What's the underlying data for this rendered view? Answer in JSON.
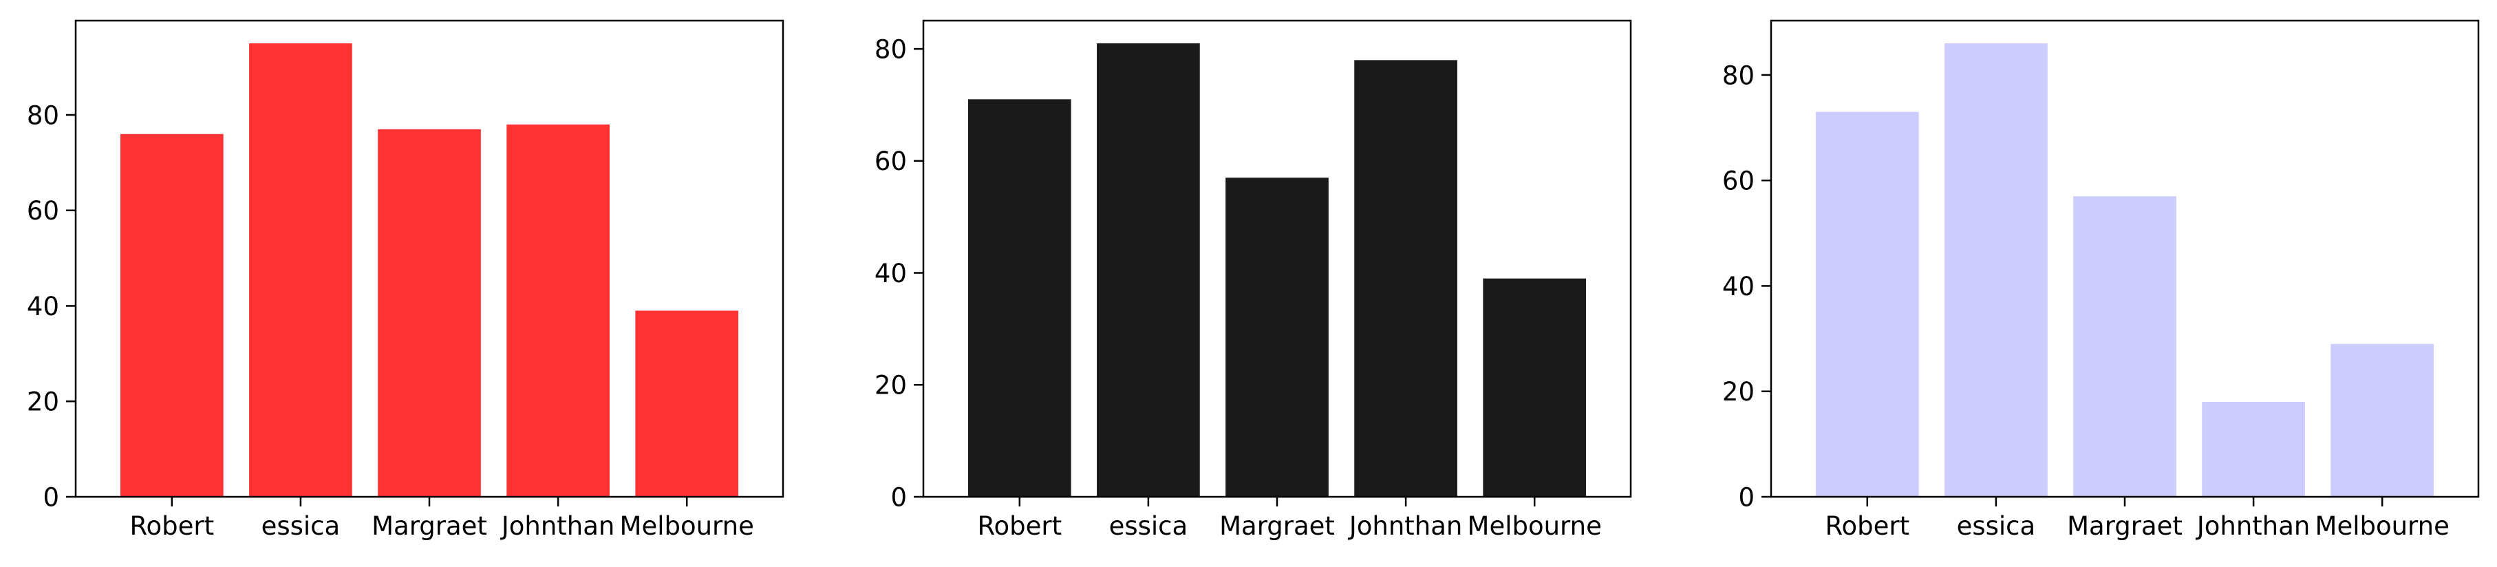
{
  "chart_data": [
    {
      "type": "bar",
      "categories": [
        "Robert",
        "essica",
        "Margraet",
        "Johnthan",
        "Melbourne"
      ],
      "values": [
        76,
        95,
        77,
        78,
        39
      ],
      "color": "#ff3333",
      "ylim": [
        0,
        99.75
      ],
      "yticks": [
        0,
        20,
        40,
        60,
        80
      ],
      "title": "",
      "xlabel": "",
      "ylabel": "",
      "grid": false
    },
    {
      "type": "bar",
      "categories": [
        "Robert",
        "essica",
        "Margraet",
        "Johnthan",
        "Melbourne"
      ],
      "values": [
        71,
        81,
        57,
        78,
        39
      ],
      "color": "#1a1a1a",
      "ylim": [
        0,
        85.05
      ],
      "yticks": [
        0,
        20,
        40,
        60,
        80
      ],
      "title": "",
      "xlabel": "",
      "ylabel": "",
      "grid": false
    },
    {
      "type": "bar",
      "categories": [
        "Robert",
        "essica",
        "Margraet",
        "Johnthan",
        "Melbourne"
      ],
      "values": [
        73,
        86,
        57,
        18,
        29
      ],
      "color": "#ccccff",
      "ylim": [
        0,
        90.3
      ],
      "yticks": [
        0,
        20,
        40,
        60,
        80
      ],
      "title": "",
      "xlabel": "",
      "ylabel": "",
      "grid": false
    }
  ]
}
